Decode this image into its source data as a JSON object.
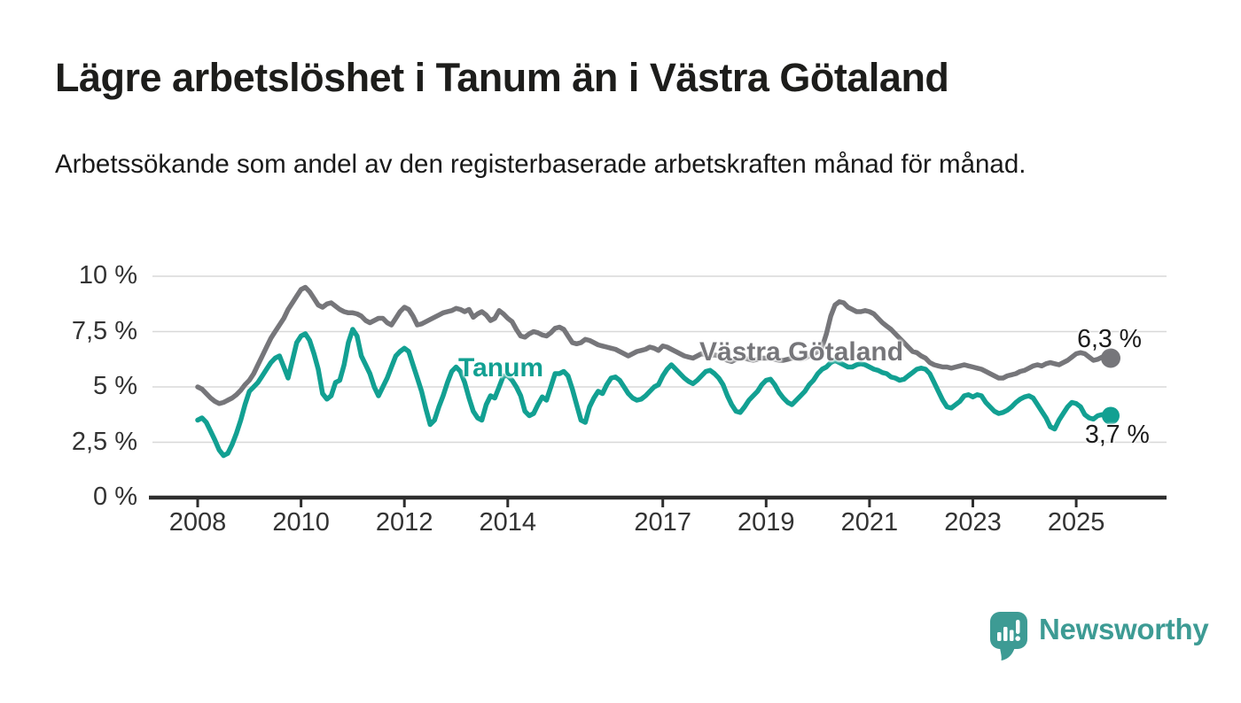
{
  "header": {
    "title": "Lägre arbetslöshet i Tanum än i Västra Götaland",
    "subtitle": "Arbetssökande som andel av den registerbaserade arbetskraften månad för månad."
  },
  "colors": {
    "tanum_teal": "#12A092",
    "vastra_gray": "#76767A",
    "axis_line": "#2E2E2E",
    "tick_text": "#333333",
    "gridline": "#D8D8D8",
    "title_text": "#1D1D1B",
    "logo_teal": "#3D9B94"
  },
  "footer": {
    "brand": "Newsworthy"
  },
  "chart_data": {
    "type": "line",
    "title": "Lägre arbetslöshet i Tanum än i Västra Götaland",
    "subtitle": "Arbetssökande som andel av den registerbaserade arbetskraften månad för månad.",
    "frequency": "monthly",
    "x_start": "2008-01",
    "x_end": "2025-09",
    "grid": true,
    "legend_position": "inline-labels",
    "y_axis": {
      "unit": "%",
      "ylim": [
        0,
        10
      ],
      "tick_values": [
        0,
        2.5,
        5,
        7.5,
        10
      ],
      "tick_labels": [
        "0 %",
        "2,5 %",
        "5 %",
        "7,5 %",
        "10 %"
      ]
    },
    "x_axis": {
      "tick_years": [
        2008,
        2010,
        2012,
        2014,
        2017,
        2019,
        2021,
        2023,
        2025
      ],
      "tick_labels": [
        "2008",
        "2010",
        "2012",
        "2014",
        "2017",
        "2019",
        "2021",
        "2023",
        "2025"
      ]
    },
    "series": [
      {
        "name": "Västra Götaland",
        "color": "#76767A",
        "end_label": "6,3 %",
        "end_value": 6.3,
        "values": [
          5.0,
          4.9,
          4.7,
          4.5,
          4.35,
          4.25,
          4.3,
          4.4,
          4.5,
          4.65,
          4.85,
          5.1,
          5.3,
          5.6,
          6.0,
          6.4,
          6.8,
          7.2,
          7.5,
          7.8,
          8.1,
          8.5,
          8.8,
          9.1,
          9.4,
          9.5,
          9.3,
          9.0,
          8.7,
          8.6,
          8.75,
          8.8,
          8.65,
          8.5,
          8.4,
          8.35,
          8.35,
          8.3,
          8.2,
          8.0,
          7.9,
          8.0,
          8.1,
          8.1,
          7.9,
          7.8,
          8.1,
          8.4,
          8.6,
          8.5,
          8.2,
          7.8,
          7.85,
          7.95,
          8.05,
          8.15,
          8.25,
          8.35,
          8.4,
          8.45,
          8.55,
          8.5,
          8.4,
          8.5,
          8.15,
          8.3,
          8.4,
          8.25,
          8.0,
          8.1,
          8.45,
          8.3,
          8.1,
          7.95,
          7.6,
          7.3,
          7.25,
          7.4,
          7.5,
          7.45,
          7.35,
          7.3,
          7.45,
          7.65,
          7.7,
          7.6,
          7.3,
          7.0,
          6.95,
          7.0,
          7.15,
          7.1,
          7.0,
          6.9,
          6.85,
          6.8,
          6.75,
          6.7,
          6.6,
          6.5,
          6.4,
          6.5,
          6.6,
          6.65,
          6.7,
          6.8,
          6.75,
          6.65,
          6.85,
          6.8,
          6.7,
          6.6,
          6.5,
          6.4,
          6.35,
          6.3,
          6.4,
          6.5,
          6.45,
          6.4,
          6.45,
          6.4,
          6.3,
          6.2,
          6.15,
          6.25,
          6.3,
          6.3,
          6.25,
          6.2,
          6.25,
          6.3,
          6.3,
          6.3,
          6.25,
          6.2,
          6.2,
          6.25,
          6.3,
          6.3,
          6.25,
          6.3,
          6.4,
          6.5,
          6.6,
          6.8,
          7.4,
          8.2,
          8.7,
          8.85,
          8.8,
          8.6,
          8.5,
          8.4,
          8.4,
          8.45,
          8.4,
          8.3,
          8.1,
          7.9,
          7.75,
          7.6,
          7.4,
          7.2,
          7.0,
          6.8,
          6.6,
          6.55,
          6.4,
          6.3,
          6.1,
          6.0,
          5.95,
          5.9,
          5.9,
          5.85,
          5.9,
          5.95,
          6.0,
          5.95,
          5.9,
          5.85,
          5.8,
          5.7,
          5.6,
          5.5,
          5.4,
          5.4,
          5.5,
          5.55,
          5.6,
          5.7,
          5.75,
          5.85,
          5.95,
          6.0,
          5.95,
          6.05,
          6.1,
          6.05,
          6.0,
          6.1,
          6.2,
          6.35,
          6.5,
          6.55,
          6.5,
          6.35,
          6.2,
          6.25,
          6.35,
          6.3,
          6.3
        ]
      },
      {
        "name": "Tanum",
        "color": "#12A092",
        "end_label": "3,7 %",
        "end_value": 3.7,
        "values": [
          3.5,
          3.6,
          3.4,
          3.0,
          2.6,
          2.15,
          1.9,
          2.0,
          2.4,
          2.9,
          3.5,
          4.2,
          4.8,
          5.0,
          5.2,
          5.5,
          5.8,
          6.1,
          6.3,
          6.4,
          5.9,
          5.4,
          6.2,
          7.0,
          7.3,
          7.4,
          7.1,
          6.5,
          5.8,
          4.7,
          4.45,
          4.6,
          5.2,
          5.3,
          6.0,
          7.0,
          7.6,
          7.3,
          6.4,
          6.0,
          5.6,
          5.0,
          4.6,
          5.0,
          5.4,
          5.9,
          6.4,
          6.6,
          6.75,
          6.6,
          6.0,
          5.4,
          4.8,
          4.0,
          3.3,
          3.5,
          4.1,
          4.6,
          5.2,
          5.7,
          5.9,
          5.7,
          5.2,
          4.5,
          3.9,
          3.6,
          3.5,
          4.2,
          4.6,
          4.5,
          5.0,
          5.5,
          5.5,
          5.3,
          5.0,
          4.6,
          3.9,
          3.7,
          3.8,
          4.2,
          4.55,
          4.4,
          5.0,
          5.6,
          5.6,
          5.7,
          5.5,
          4.9,
          4.2,
          3.5,
          3.4,
          4.1,
          4.5,
          4.8,
          4.7,
          5.1,
          5.4,
          5.45,
          5.3,
          5.0,
          4.7,
          4.5,
          4.4,
          4.45,
          4.6,
          4.8,
          5.0,
          5.1,
          5.5,
          5.8,
          6.0,
          5.8,
          5.6,
          5.4,
          5.25,
          5.15,
          5.3,
          5.5,
          5.7,
          5.75,
          5.6,
          5.4,
          5.1,
          4.6,
          4.2,
          3.9,
          3.85,
          4.1,
          4.4,
          4.6,
          4.8,
          5.1,
          5.3,
          5.35,
          5.1,
          4.75,
          4.5,
          4.3,
          4.2,
          4.4,
          4.6,
          4.8,
          5.1,
          5.3,
          5.6,
          5.8,
          5.9,
          6.1,
          6.2,
          6.1,
          6.0,
          5.9,
          5.9,
          6.0,
          6.05,
          6.0,
          5.9,
          5.8,
          5.75,
          5.65,
          5.6,
          5.45,
          5.4,
          5.3,
          5.35,
          5.5,
          5.65,
          5.8,
          5.85,
          5.8,
          5.6,
          5.2,
          4.8,
          4.4,
          4.1,
          4.05,
          4.2,
          4.35,
          4.6,
          4.65,
          4.55,
          4.65,
          4.6,
          4.3,
          4.1,
          3.9,
          3.8,
          3.85,
          3.95,
          4.1,
          4.3,
          4.45,
          4.55,
          4.6,
          4.5,
          4.2,
          3.9,
          3.6,
          3.2,
          3.1,
          3.5,
          3.8,
          4.1,
          4.3,
          4.25,
          4.1,
          3.75,
          3.6,
          3.55,
          3.7,
          3.75,
          3.7,
          3.7
        ]
      }
    ]
  }
}
